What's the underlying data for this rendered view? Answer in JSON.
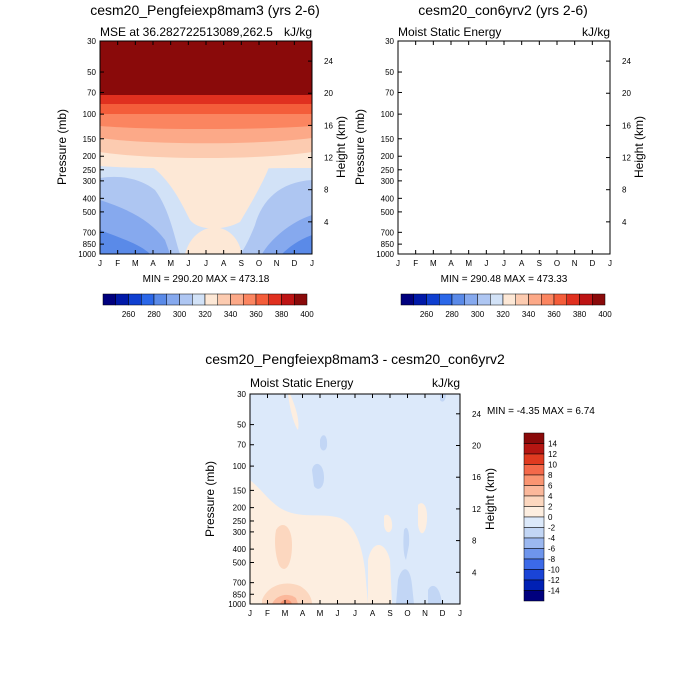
{
  "colors": {
    "positive_scale": [
      "#00007e",
      "#0019a8",
      "#0f3fd0",
      "#2b67e8",
      "#5a8ae8",
      "#86a9ee",
      "#aec6f2",
      "#d2e2f7",
      "#fde8d6",
      "#fccbb0",
      "#fca988",
      "#fb8560",
      "#f45d3a",
      "#e0301f",
      "#bd1414",
      "#8a0a0a"
    ],
    "diff_scale": [
      "#00007e",
      "#0020b4",
      "#1a44d6",
      "#3c6ae8",
      "#6e95ec",
      "#9bb8f0",
      "#c2d6f5",
      "#dce9fa",
      "#fdeee0",
      "#fcd7bf",
      "#fbb89b",
      "#fa9572",
      "#f4694a",
      "#e03a20",
      "#b51612",
      "#8a0a0a"
    ]
  },
  "chart_data": [
    {
      "type": "contour",
      "title": "cesm20_Pengfeiexp8mam3 (yrs 2-6)",
      "left_label": "MSE at 36.282722513089,262.5",
      "right_label": "kJ/kg",
      "ylabel": "Pressure (mb)",
      "y2label": "Height (km)",
      "x_ticks": [
        "J",
        "F",
        "M",
        "A",
        "M",
        "J",
        "J",
        "A",
        "S",
        "O",
        "N",
        "D",
        "J"
      ],
      "y_ticks": [
        "30",
        "50",
        "70",
        "100",
        "150",
        "200",
        "250",
        "300",
        "400",
        "500",
        "700",
        "850",
        "1000"
      ],
      "y2_ticks": [
        "24",
        "20",
        "16",
        "12",
        "8",
        "4"
      ],
      "stats": "MIN = 290.20  MAX = 473.18",
      "colorbar_labels": [
        "260",
        "280",
        "300",
        "320",
        "340",
        "360",
        "380",
        "400"
      ]
    },
    {
      "type": "contour",
      "title": "cesm20_con6yrv2 (yrs 2-6)",
      "left_label": "Moist Static Energy",
      "right_label": "kJ/kg",
      "ylabel": "Pressure (mb)",
      "y2label": "Height (km)",
      "x_ticks": [
        "J",
        "F",
        "M",
        "A",
        "M",
        "J",
        "J",
        "A",
        "S",
        "O",
        "N",
        "D",
        "J"
      ],
      "y_ticks": [
        "30",
        "50",
        "70",
        "100",
        "150",
        "200",
        "250",
        "300",
        "400",
        "500",
        "700",
        "850",
        "1000"
      ],
      "y2_ticks": [
        "24",
        "20",
        "16",
        "12",
        "8",
        "4"
      ],
      "stats": "MIN = 290.48  MAX = 473.33",
      "colorbar_labels": [
        "260",
        "280",
        "300",
        "320",
        "340",
        "360",
        "380",
        "400"
      ]
    },
    {
      "type": "contour",
      "title": "cesm20_Pengfeiexp8mam3 - cesm20_con6yrv2",
      "left_label": "Moist Static Energy",
      "right_label": "kJ/kg",
      "ylabel": "Pressure (mb)",
      "y2label": "Height (km)",
      "x_ticks": [
        "J",
        "F",
        "M",
        "A",
        "M",
        "J",
        "J",
        "A",
        "S",
        "O",
        "N",
        "D",
        "J"
      ],
      "y_ticks": [
        "30",
        "50",
        "70",
        "100",
        "150",
        "200",
        "250",
        "300",
        "400",
        "500",
        "700",
        "850",
        "1000"
      ],
      "y2_ticks": [
        "24",
        "20",
        "16",
        "12",
        "8",
        "4"
      ],
      "stats": "MIN =  -4.35 MAX =   6.74",
      "colorbar_labels": [
        "14",
        "12",
        "10",
        "8",
        "6",
        "4",
        "2",
        "0",
        "-2",
        "-4",
        "-6",
        "-8",
        "-10",
        "-12",
        "-14"
      ]
    }
  ]
}
